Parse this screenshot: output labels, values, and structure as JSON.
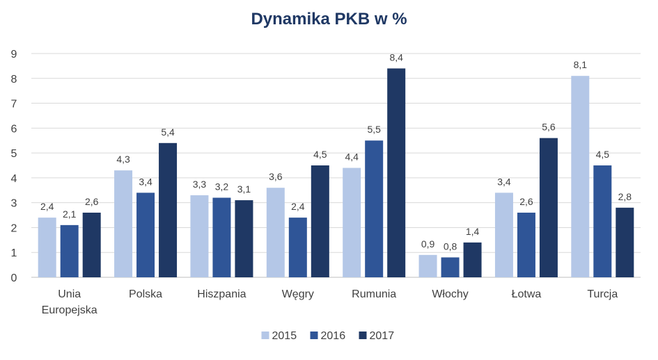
{
  "chart_data": {
    "type": "bar",
    "title": "Dynamika PKB w %",
    "categories": [
      [
        "Unia",
        "Europejska"
      ],
      [
        "Polska"
      ],
      [
        "Hiszpania"
      ],
      [
        "Węgry"
      ],
      [
        "Rumunia"
      ],
      [
        "Włochy"
      ],
      [
        "Łotwa"
      ],
      [
        "Turcja"
      ]
    ],
    "series": [
      {
        "name": "2015",
        "color": "#b4c7e7",
        "values": [
          2.4,
          4.3,
          3.3,
          3.6,
          4.4,
          0.9,
          3.4,
          8.1
        ],
        "labels": [
          "2,4",
          "4,3",
          "3,3",
          "3,6",
          "4,4",
          "0,9",
          "3,4",
          "8,1"
        ]
      },
      {
        "name": "2016",
        "color": "#2f5597",
        "values": [
          2.1,
          3.4,
          3.2,
          2.4,
          5.5,
          0.8,
          2.6,
          4.5
        ],
        "labels": [
          "2,1",
          "3,4",
          "3,2",
          "2,4",
          "5,5",
          "0,8",
          "2,6",
          "4,5"
        ]
      },
      {
        "name": "2017",
        "color": "#1f3864",
        "values": [
          2.6,
          5.4,
          3.1,
          4.5,
          8.4,
          1.4,
          5.6,
          2.8
        ],
        "labels": [
          "2,6",
          "5,4",
          "3,1",
          "4,5",
          "8,4",
          "1,4",
          "5,6",
          "2,8"
        ]
      }
    ],
    "ylim": [
      0,
      9
    ],
    "yticks": [
      "0",
      "1",
      "2",
      "3",
      "4",
      "5",
      "6",
      "7",
      "8",
      "9"
    ],
    "grid": true,
    "legend": "bottom"
  }
}
